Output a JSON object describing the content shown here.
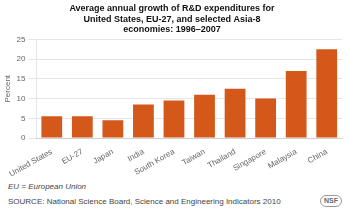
{
  "chart_data": {
    "type": "bar",
    "title": "Average annual growth of R&D expenditures for\nUnited States, EU-27, and selected Asia-8\neconomies: 1996–2007",
    "categories": [
      "United States",
      "EU-27",
      "Japan",
      "India",
      "South Korea",
      "Taiwan",
      "Thailand",
      "Singapore",
      "Malaysia",
      "China"
    ],
    "values": [
      5.5,
      5.5,
      4.5,
      8.5,
      9.5,
      11.0,
      12.5,
      10.0,
      17.0,
      22.5
    ],
    "color": "#D4581A",
    "ylabel": "Percent",
    "ylim": [
      0,
      25
    ],
    "yticks": [
      0,
      5,
      10,
      15,
      20,
      25
    ],
    "grid": true,
    "annotations": [
      "EU = European Union",
      "SOURCE: National Science Board, Science and Engineering Indicators 2010",
      "NSF"
    ]
  }
}
